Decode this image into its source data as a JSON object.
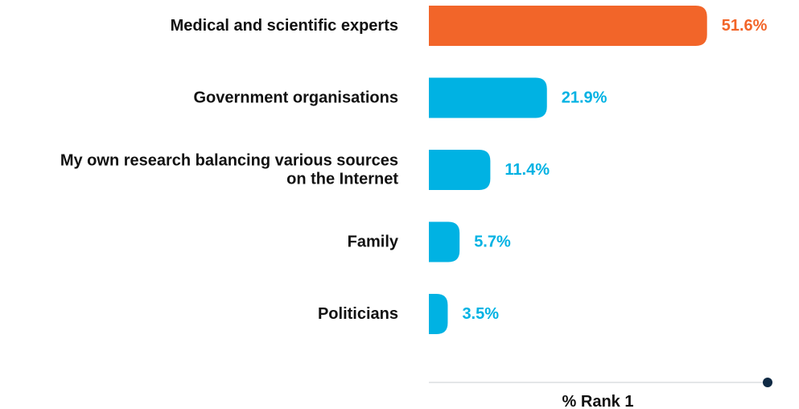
{
  "chart_data": {
    "type": "bar",
    "orientation": "horizontal",
    "categories": [
      [
        "Medical and scientific experts"
      ],
      [
        "Government organisations"
      ],
      [
        "My own research balancing various sources",
        "on the Internet"
      ],
      [
        "Family"
      ],
      [
        "Politicians"
      ]
    ],
    "values": [
      51.6,
      21.9,
      11.4,
      5.7,
      3.5
    ],
    "value_labels": [
      "51.6%",
      "21.9%",
      "11.4%",
      "5.7%",
      "3.5%"
    ],
    "xlabel": "% Rank 1",
    "xlim": [
      0,
      60
    ],
    "highlight_index": 0,
    "grid": false,
    "legend": "none",
    "colors": {
      "highlight": "#F26529",
      "default": "#00B2E3",
      "axis_line": "#C8CCD0",
      "axis_marker": "#0F2A44",
      "text": "#111111"
    }
  }
}
